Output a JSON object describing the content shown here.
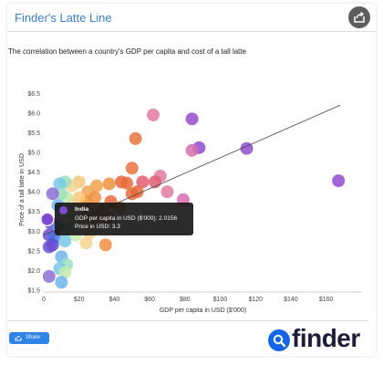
{
  "header": {
    "title": "Finder's Latte Line"
  },
  "subtitle": "The correlation between a country's GDP per capita and cost of a tall latte",
  "share_button": {
    "label": "Share"
  },
  "logo": {
    "text": "finder"
  },
  "tooltip": {
    "country": "India",
    "gdp_label": "GDP per capita in USD ($'000):",
    "gdp_value": "2.0156",
    "price_label": "Price in USD:",
    "price_value": "3.3"
  },
  "chart_data": {
    "type": "scatter",
    "title": "",
    "xlabel": "GDP per capita in USD ($'000)",
    "ylabel": "Price of a tall latte in USD",
    "xlim": [
      0,
      170
    ],
    "ylim": [
      1.5,
      6.6
    ],
    "x_ticks": [
      0,
      20,
      40,
      60,
      80,
      100,
      120,
      140,
      160
    ],
    "x_tick_labels": [
      "0",
      "$20",
      "$40",
      "$60",
      "$80",
      "$100",
      "$120",
      "$140",
      "$160"
    ],
    "y_ticks": [
      1.5,
      2.0,
      2.5,
      3.0,
      3.5,
      4.0,
      4.5,
      5.0,
      5.5,
      6.0,
      6.5
    ],
    "y_tick_labels": [
      "$1.5",
      "$2.0",
      "$2.5",
      "$3.0",
      "$3.5",
      "$4.0",
      "$4.5",
      "$5.0",
      "$5.5",
      "$6.0",
      "$6.5"
    ],
    "grid": false,
    "legend": "none",
    "trendline": {
      "x": [
        0,
        168
      ],
      "y": [
        2.9,
        6.2
      ]
    },
    "highlighted_point": {
      "label": "India",
      "x": 2.0156,
      "y": 3.3
    },
    "points": [
      {
        "x": 62,
        "y": 5.95,
        "color": "#e07aa0"
      },
      {
        "x": 84,
        "y": 5.85,
        "color": "#9a4ac9"
      },
      {
        "x": 52,
        "y": 5.35,
        "color": "#e6743f"
      },
      {
        "x": 115,
        "y": 5.1,
        "color": "#8f4bd1"
      },
      {
        "x": 88,
        "y": 5.12,
        "color": "#8f4bd1"
      },
      {
        "x": 84,
        "y": 5.05,
        "color": "#d86fb1"
      },
      {
        "x": 50,
        "y": 4.6,
        "color": "#e6743f"
      },
      {
        "x": 66,
        "y": 4.4,
        "color": "#e07aa0"
      },
      {
        "x": 167,
        "y": 4.28,
        "color": "#8f4bd1"
      },
      {
        "x": 56,
        "y": 4.25,
        "color": "#e05f74"
      },
      {
        "x": 63,
        "y": 4.25,
        "color": "#e05f74"
      },
      {
        "x": 44,
        "y": 4.25,
        "color": "#e66a3a"
      },
      {
        "x": 47,
        "y": 4.22,
        "color": "#e66a3a"
      },
      {
        "x": 37,
        "y": 4.2,
        "color": "#f0903f"
      },
      {
        "x": 30,
        "y": 4.15,
        "color": "#f0a552"
      },
      {
        "x": 25,
        "y": 4.0,
        "color": "#f0a552"
      },
      {
        "x": 20,
        "y": 4.25,
        "color": "#f5c97a"
      },
      {
        "x": 16,
        "y": 4.15,
        "color": "#f5d48f"
      },
      {
        "x": 12,
        "y": 4.25,
        "color": "#9adfbc"
      },
      {
        "x": 9,
        "y": 4.2,
        "color": "#78c8e8"
      },
      {
        "x": 53,
        "y": 4.0,
        "color": "#e66a3a"
      },
      {
        "x": 50,
        "y": 3.95,
        "color": "#e66a3a"
      },
      {
        "x": 70,
        "y": 4.0,
        "color": "#e07aa0"
      },
      {
        "x": 79,
        "y": 3.8,
        "color": "#d86fb1"
      },
      {
        "x": 38,
        "y": 3.75,
        "color": "#e66a3a"
      },
      {
        "x": 29,
        "y": 3.85,
        "color": "#f0903f"
      },
      {
        "x": 24,
        "y": 3.75,
        "color": "#f0903f"
      },
      {
        "x": 20,
        "y": 3.85,
        "color": "#f5c97a"
      },
      {
        "x": 17,
        "y": 3.75,
        "color": "#f5d48f"
      },
      {
        "x": 13,
        "y": 3.85,
        "color": "#c6ebb0"
      },
      {
        "x": 10,
        "y": 3.95,
        "color": "#9adfbc"
      },
      {
        "x": 5,
        "y": 3.95,
        "color": "#8f6fd6"
      },
      {
        "x": 8,
        "y": 3.65,
        "color": "#6fb6ec"
      },
      {
        "x": 43,
        "y": 3.6,
        "color": "#f0903f"
      },
      {
        "x": 33,
        "y": 3.55,
        "color": "#f0903f"
      },
      {
        "x": 27,
        "y": 3.55,
        "color": "#f0a552"
      },
      {
        "x": 23,
        "y": 3.6,
        "color": "#f0a552"
      },
      {
        "x": 36,
        "y": 3.35,
        "color": "#e66a3a"
      },
      {
        "x": 28,
        "y": 3.3,
        "color": "#f0a552"
      },
      {
        "x": 20,
        "y": 3.3,
        "color": "#f5d48f"
      },
      {
        "x": 15,
        "y": 3.45,
        "color": "#c6ebb0"
      },
      {
        "x": 4,
        "y": 3.2,
        "color": "#6a4fd0"
      },
      {
        "x": 2.0156,
        "y": 3.3,
        "color": "#7e4bd3"
      },
      {
        "x": 8,
        "y": 3.1,
        "color": "#5a8ee6"
      },
      {
        "x": 14,
        "y": 3.05,
        "color": "#9adfbc"
      },
      {
        "x": 18,
        "y": 2.9,
        "color": "#c6ebb0"
      },
      {
        "x": 26,
        "y": 2.95,
        "color": "#f5d48f"
      },
      {
        "x": 3,
        "y": 2.9,
        "color": "#6a4fd0"
      },
      {
        "x": 6,
        "y": 2.85,
        "color": "#4a6ee0"
      },
      {
        "x": 12,
        "y": 2.75,
        "color": "#78c8e8"
      },
      {
        "x": 24,
        "y": 2.7,
        "color": "#f5d48f"
      },
      {
        "x": 35,
        "y": 2.65,
        "color": "#f0903f"
      },
      {
        "x": 5,
        "y": 2.65,
        "color": "#5a4fd6"
      },
      {
        "x": 3,
        "y": 2.6,
        "color": "#6a4fd0"
      },
      {
        "x": 10,
        "y": 2.35,
        "color": "#6fb6ec"
      },
      {
        "x": 13,
        "y": 2.15,
        "color": "#9adfbc"
      },
      {
        "x": 9,
        "y": 2.05,
        "color": "#78c8e8"
      },
      {
        "x": 12,
        "y": 1.95,
        "color": "#c6ebb0"
      },
      {
        "x": 3,
        "y": 1.85,
        "color": "#8f6fd6"
      },
      {
        "x": 10,
        "y": 1.7,
        "color": "#6fb6ec"
      }
    ]
  }
}
